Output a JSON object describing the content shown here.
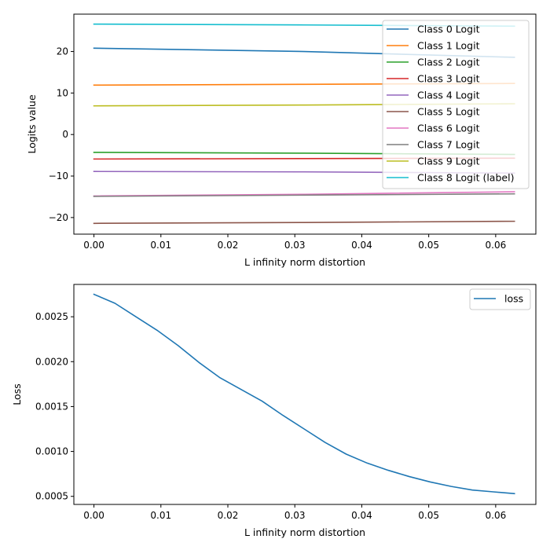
{
  "chart_data": [
    {
      "type": "line",
      "xlabel": "L infinity norm distortion",
      "ylabel": "Logits value",
      "xlim": [
        -0.003,
        0.066
      ],
      "ylim": [
        -24,
        29
      ],
      "xticks": [
        0.0,
        0.01,
        0.02,
        0.03,
        0.04,
        0.05,
        0.06
      ],
      "xtick_labels": [
        "0.00",
        "0.01",
        "0.02",
        "0.03",
        "0.04",
        "0.05",
        "0.06"
      ],
      "yticks": [
        -20,
        -10,
        0,
        10,
        20
      ],
      "ytick_labels": [
        "−20",
        "−10",
        "0",
        "10",
        "20"
      ],
      "legend_position": "upper-right",
      "x": [
        0.0,
        0.0314,
        0.0628
      ],
      "series": [
        {
          "name": "Class 0 Logit",
          "color": "#1f77b4",
          "values": [
            20.8,
            20.0,
            18.6
          ]
        },
        {
          "name": "Class 1 Logit",
          "color": "#ff7f0e",
          "values": [
            11.9,
            12.1,
            12.3
          ]
        },
        {
          "name": "Class 2 Logit",
          "color": "#2ca02c",
          "values": [
            -4.3,
            -4.5,
            -4.8
          ]
        },
        {
          "name": "Class 3 Logit",
          "color": "#d62728",
          "values": [
            -5.9,
            -5.8,
            -5.7
          ]
        },
        {
          "name": "Class 4 Logit",
          "color": "#9467bd",
          "values": [
            -8.9,
            -9.0,
            -9.3
          ]
        },
        {
          "name": "Class 5 Logit",
          "color": "#8c564b",
          "values": [
            -21.4,
            -21.2,
            -20.9
          ]
        },
        {
          "name": "Class 6 Logit",
          "color": "#e377c2",
          "values": [
            -14.8,
            -14.4,
            -13.8
          ]
        },
        {
          "name": "Class 7 Logit",
          "color": "#7f7f7f",
          "values": [
            -14.9,
            -14.6,
            -14.3
          ]
        },
        {
          "name": "Class 9 Logit",
          "color": "#bcbd22",
          "values": [
            6.9,
            7.1,
            7.4
          ]
        },
        {
          "name": "Class 8 Logit (label)",
          "color": "#17becf",
          "values": [
            26.6,
            26.4,
            26.1
          ]
        }
      ]
    },
    {
      "type": "line",
      "xlabel": "L infinity norm distortion",
      "ylabel": "Loss",
      "xlim": [
        -0.003,
        0.066
      ],
      "ylim": [
        0.00041,
        0.00286
      ],
      "xticks": [
        0.0,
        0.01,
        0.02,
        0.03,
        0.04,
        0.05,
        0.06
      ],
      "xtick_labels": [
        "0.00",
        "0.01",
        "0.02",
        "0.03",
        "0.04",
        "0.05",
        "0.06"
      ],
      "yticks": [
        0.0005,
        0.001,
        0.0015,
        0.002,
        0.0025
      ],
      "ytick_labels": [
        "0.0005",
        "0.0010",
        "0.0015",
        "0.0020",
        "0.0025"
      ],
      "legend_position": "upper-right",
      "x": [
        0.0,
        0.00314,
        0.00628,
        0.00942,
        0.01256,
        0.0157,
        0.01884,
        0.02198,
        0.02512,
        0.02826,
        0.0314,
        0.03454,
        0.03768,
        0.04082,
        0.04396,
        0.0471,
        0.05024,
        0.05338,
        0.05652,
        0.05966,
        0.0628
      ],
      "series": [
        {
          "name": "loss",
          "color": "#1f77b4",
          "values": [
            0.00275,
            0.00265,
            0.0025,
            0.00235,
            0.00218,
            0.00199,
            0.00182,
            0.00169,
            0.00156,
            0.0014,
            0.00125,
            0.0011,
            0.00097,
            0.00087,
            0.00079,
            0.00072,
            0.00066,
            0.00061,
            0.00057,
            0.00055,
            0.00053
          ]
        }
      ]
    }
  ]
}
